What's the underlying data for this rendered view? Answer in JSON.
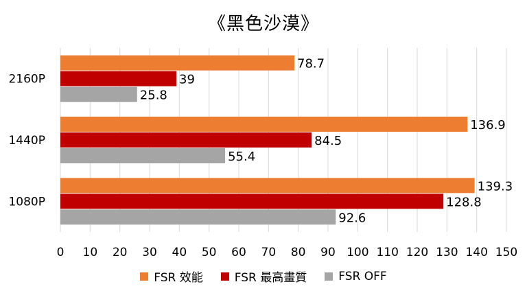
{
  "chart_data": {
    "type": "bar",
    "orientation": "horizontal",
    "title": "《黑色沙漠》",
    "categories": [
      "2160P",
      "1440P",
      "1080P"
    ],
    "series": [
      {
        "name": "FSR 效能",
        "color": "#ED7D31",
        "values": [
          78.7,
          136.9,
          139.3
        ]
      },
      {
        "name": "FSR 最高畫質",
        "color": "#C00000",
        "values": [
          39,
          84.5,
          128.8
        ]
      },
      {
        "name": "FSR OFF",
        "color": "#A5A5A5",
        "values": [
          25.8,
          55.4,
          92.6
        ]
      }
    ],
    "xlim": [
      0,
      150
    ],
    "xticks": [
      0,
      10,
      20,
      30,
      40,
      50,
      60,
      70,
      80,
      90,
      100,
      110,
      120,
      130,
      140,
      150
    ],
    "grid": "vertical",
    "legend_position": "bottom",
    "data_labels": true
  }
}
